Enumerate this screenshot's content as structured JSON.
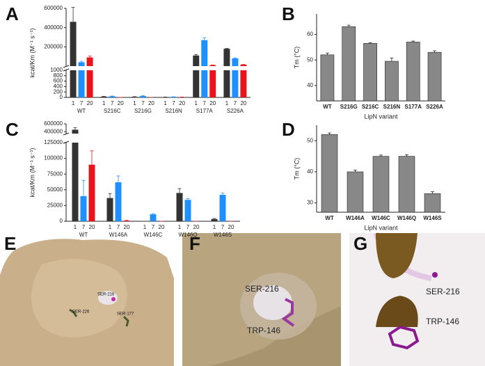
{
  "chart_data": [
    {
      "type": "bar",
      "panel": "A",
      "broken": true,
      "ylabel": "kcat/Km (M⁻¹ s⁻¹)",
      "categories": [
        "WT",
        "S216C",
        "S216G",
        "S216N",
        "S177A",
        "S226A"
      ],
      "subgroups": [
        "1",
        "7",
        "20"
      ],
      "series": [
        {
          "color": "#333333",
          "values": [
            460000,
            30,
            20,
            10,
            110000,
            180000
          ],
          "errors": [
            150000,
            10,
            10,
            5,
            10000,
            5000
          ]
        },
        {
          "color": "#1e90ff",
          "values": [
            40000,
            40,
            50,
            20,
            270000,
            80000
          ],
          "errors": [
            10000,
            10,
            15,
            5,
            25000,
            5000
          ]
        },
        {
          "color": "#e8141c",
          "values": [
            90000,
            0,
            0,
            10,
            10000,
            15000
          ],
          "errors": [
            15000,
            0,
            0,
            5,
            2000,
            2000
          ]
        }
      ],
      "ylim": [
        0,
        1000
      ],
      "yticks": [
        0,
        200,
        400,
        600,
        800,
        1000
      ],
      "ylim_upper": [
        0,
        600000
      ],
      "yticks_upper": [
        200000,
        400000,
        600000
      ]
    },
    {
      "type": "bar",
      "panel": "B",
      "broken": false,
      "ylabel": "Tm (°C)",
      "xlabel": "LipN variant",
      "categories": [
        "WT",
        "S216G",
        "S216C",
        "S216N",
        "S177A",
        "S226A"
      ],
      "series": [
        {
          "color": "#888888",
          "values": [
            52,
            63,
            56.5,
            49.5,
            57,
            53
          ],
          "errors": [
            0.7,
            0.6,
            0.3,
            1.3,
            0.4,
            0.6
          ]
        }
      ],
      "ylim": [
        34,
        68
      ],
      "yticks": [
        40,
        50,
        60
      ]
    },
    {
      "type": "bar",
      "panel": "C",
      "broken": true,
      "ylabel": "kcat/Km (M⁻¹ s⁻¹)",
      "categories": [
        "WT",
        "W146A",
        "W146C",
        "W146Q",
        "W146S"
      ],
      "subgroups": [
        "1",
        "7",
        "20"
      ],
      "series": [
        {
          "color": "#333333",
          "values": [
            450000,
            37000,
            0,
            45000,
            3500
          ],
          "errors": [
            50000,
            7000,
            0,
            7000,
            1000
          ]
        },
        {
          "color": "#1e90ff",
          "values": [
            40000,
            62000,
            11000,
            34000,
            42000
          ],
          "errors": [
            25000,
            10000,
            1000,
            2000,
            3000
          ]
        },
        {
          "color": "#e8141c",
          "values": [
            90000,
            1000,
            0,
            0,
            0
          ],
          "errors": [
            22000,
            500,
            0,
            0,
            0
          ]
        }
      ],
      "ylim": [
        0,
        125000
      ],
      "yticks": [
        0,
        25000,
        50000,
        75000,
        100000,
        125000
      ],
      "ylim_upper": [
        350000,
        600000
      ],
      "yticks_upper": [
        400000,
        600000
      ]
    },
    {
      "type": "bar",
      "panel": "D",
      "broken": false,
      "ylabel": "Tm (°C)",
      "xlabel": "LipN variant",
      "categories": [
        "WT",
        "W146A",
        "W146C",
        "W146Q",
        "W146S"
      ],
      "series": [
        {
          "color": "#888888",
          "values": [
            52,
            40,
            45,
            45,
            33
          ],
          "errors": [
            0.5,
            0.6,
            0.4,
            0.5,
            0.6
          ]
        }
      ],
      "ylim": [
        27,
        55
      ],
      "yticks": [
        30,
        40,
        50
      ]
    }
  ],
  "images": [
    {
      "panel": "E",
      "labels": [
        "SER-216",
        "SER-226",
        "SER-177"
      ]
    },
    {
      "panel": "F",
      "labels": [
        "SER-216",
        "TRP-146"
      ]
    },
    {
      "panel": "G",
      "labels": [
        "SER-216",
        "TRP-146"
      ]
    }
  ]
}
